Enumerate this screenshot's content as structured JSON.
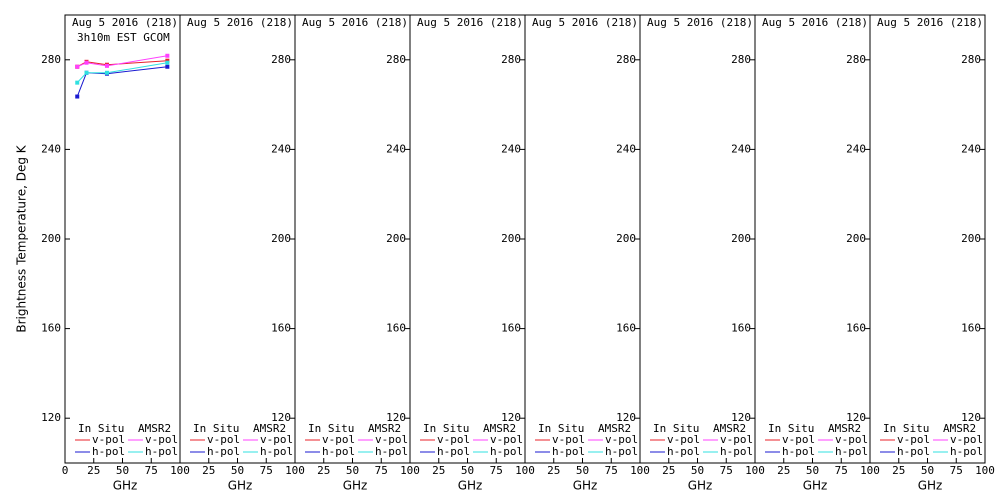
{
  "chart_data": [
    {
      "type": "line",
      "title": "Aug 5 2016 (218)",
      "subtitle": "3h10m EST GCOM",
      "ylabel": "Brightness Temperature, Deg K",
      "xlabel": "GHz",
      "ytick_side": "left",
      "x": [
        10.65,
        18.7,
        36.5,
        89
      ],
      "xlim": [
        0,
        100
      ],
      "xticks": [
        0,
        25,
        50,
        75,
        100
      ],
      "ylim": [
        100,
        300
      ],
      "yticks": [
        120,
        160,
        200,
        240,
        280
      ],
      "legend_titles": [
        "In Situ",
        "AMSR2"
      ],
      "series": [
        {
          "name": "v-pol",
          "color": "#e8202a",
          "values": [
            276.9,
            279.1,
            277.8,
            279.6
          ]
        },
        {
          "name": "h-pol",
          "color": "#1a1ad0",
          "values": [
            263.6,
            274.2,
            273.8,
            276.9
          ]
        },
        {
          "name": "v-pol",
          "color": "#ff40ff",
          "values": [
            276.9,
            278.7,
            277.3,
            281.8
          ]
        },
        {
          "name": "h-pol",
          "color": "#30e0e0",
          "values": [
            269.8,
            274.2,
            274.2,
            278.7
          ]
        }
      ]
    },
    {
      "type": "line",
      "title": "Aug 5 2016 (218)",
      "xlabel": "GHz",
      "ytick_side": "right",
      "x": [],
      "xlim": [
        0,
        100
      ],
      "xticks": [
        25,
        50,
        75,
        100
      ],
      "ylim": [
        100,
        300
      ],
      "yticks": [
        120,
        160,
        200,
        240,
        280
      ],
      "legend_titles": [
        "In Situ",
        "AMSR2"
      ],
      "series": [
        {
          "name": "v-pol",
          "color": "#e8202a",
          "values": []
        },
        {
          "name": "h-pol",
          "color": "#1a1ad0",
          "values": []
        },
        {
          "name": "v-pol",
          "color": "#ff40ff",
          "values": []
        },
        {
          "name": "h-pol",
          "color": "#30e0e0",
          "values": []
        }
      ]
    },
    {
      "type": "line",
      "title": "Aug 5 2016 (218)",
      "xlabel": "GHz",
      "ytick_side": "right",
      "x": [],
      "xlim": [
        0,
        100
      ],
      "xticks": [
        25,
        50,
        75,
        100
      ],
      "ylim": [
        100,
        300
      ],
      "yticks": [
        120,
        160,
        200,
        240,
        280
      ],
      "legend_titles": [
        "In Situ",
        "AMSR2"
      ],
      "series": [
        {
          "name": "v-pol",
          "color": "#e8202a",
          "values": []
        },
        {
          "name": "h-pol",
          "color": "#1a1ad0",
          "values": []
        },
        {
          "name": "v-pol",
          "color": "#ff40ff",
          "values": []
        },
        {
          "name": "h-pol",
          "color": "#30e0e0",
          "values": []
        }
      ]
    },
    {
      "type": "line",
      "title": "Aug 5 2016 (218)",
      "xlabel": "GHz",
      "ytick_side": "right",
      "x": [],
      "xlim": [
        0,
        100
      ],
      "xticks": [
        25,
        50,
        75,
        100
      ],
      "ylim": [
        100,
        300
      ],
      "yticks": [
        120,
        160,
        200,
        240,
        280
      ],
      "legend_titles": [
        "In Situ",
        "AMSR2"
      ],
      "series": [
        {
          "name": "v-pol",
          "color": "#e8202a",
          "values": []
        },
        {
          "name": "h-pol",
          "color": "#1a1ad0",
          "values": []
        },
        {
          "name": "v-pol",
          "color": "#ff40ff",
          "values": []
        },
        {
          "name": "h-pol",
          "color": "#30e0e0",
          "values": []
        }
      ]
    },
    {
      "type": "line",
      "title": "Aug 5 2016 (218)",
      "xlabel": "GHz",
      "ytick_side": "right",
      "x": [],
      "xlim": [
        0,
        100
      ],
      "xticks": [
        25,
        50,
        75,
        100
      ],
      "ylim": [
        100,
        300
      ],
      "yticks": [
        120,
        160,
        200,
        240,
        280
      ],
      "legend_titles": [
        "In Situ",
        "AMSR2"
      ],
      "series": [
        {
          "name": "v-pol",
          "color": "#e8202a",
          "values": []
        },
        {
          "name": "h-pol",
          "color": "#1a1ad0",
          "values": []
        },
        {
          "name": "v-pol",
          "color": "#ff40ff",
          "values": []
        },
        {
          "name": "h-pol",
          "color": "#30e0e0",
          "values": []
        }
      ]
    },
    {
      "type": "line",
      "title": "Aug 5 2016 (218)",
      "xlabel": "GHz",
      "ytick_side": "right",
      "x": [],
      "xlim": [
        0,
        100
      ],
      "xticks": [
        25,
        50,
        75,
        100
      ],
      "ylim": [
        100,
        300
      ],
      "yticks": [
        120,
        160,
        200,
        240,
        280
      ],
      "legend_titles": [
        "In Situ",
        "AMSR2"
      ],
      "series": [
        {
          "name": "v-pol",
          "color": "#e8202a",
          "values": []
        },
        {
          "name": "h-pol",
          "color": "#1a1ad0",
          "values": []
        },
        {
          "name": "v-pol",
          "color": "#ff40ff",
          "values": []
        },
        {
          "name": "h-pol",
          "color": "#30e0e0",
          "values": []
        }
      ]
    },
    {
      "type": "line",
      "title": "Aug 5 2016 (218)",
      "xlabel": "GHz",
      "ytick_side": "right",
      "x": [],
      "xlim": [
        0,
        100
      ],
      "xticks": [
        25,
        50,
        75,
        100
      ],
      "ylim": [
        100,
        300
      ],
      "yticks": [
        120,
        160,
        200,
        240,
        280
      ],
      "legend_titles": [
        "In Situ",
        "AMSR2"
      ],
      "series": [
        {
          "name": "v-pol",
          "color": "#e8202a",
          "values": []
        },
        {
          "name": "h-pol",
          "color": "#1a1ad0",
          "values": []
        },
        {
          "name": "v-pol",
          "color": "#ff40ff",
          "values": []
        },
        {
          "name": "h-pol",
          "color": "#30e0e0",
          "values": []
        }
      ]
    },
    {
      "type": "line",
      "title": "Aug 5 2016 (218)",
      "xlabel": "GHz",
      "ytick_side": "right",
      "x": [],
      "xlim": [
        0,
        100
      ],
      "xticks": [
        25,
        50,
        75,
        100
      ],
      "ylim": [
        100,
        300
      ],
      "yticks": [
        120,
        160,
        200,
        240,
        280
      ],
      "legend_titles": [
        "In Situ",
        "AMSR2"
      ],
      "series": [
        {
          "name": "v-pol",
          "color": "#e8202a",
          "values": []
        },
        {
          "name": "h-pol",
          "color": "#1a1ad0",
          "values": []
        },
        {
          "name": "v-pol",
          "color": "#ff40ff",
          "values": []
        },
        {
          "name": "h-pol",
          "color": "#30e0e0",
          "values": []
        }
      ]
    }
  ]
}
